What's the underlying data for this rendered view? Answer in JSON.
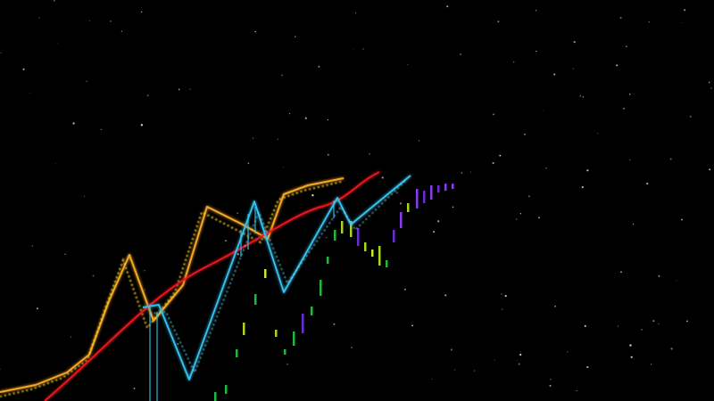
{
  "scene": {
    "background_color": "#000000",
    "star_color": "#ffffff",
    "trend_line_color": "#e8141c",
    "orange_line_color": "#f5a623",
    "yellow_dotted_color": "#f2d21b",
    "cyan_line_color": "#35c3f0",
    "cyan_dotted_color": "#7ad9f5",
    "bar_colors": [
      "#1fb83a",
      "#a8d420",
      "#c9e62c",
      "#6a2bd8",
      "#8a3cf0"
    ]
  }
}
